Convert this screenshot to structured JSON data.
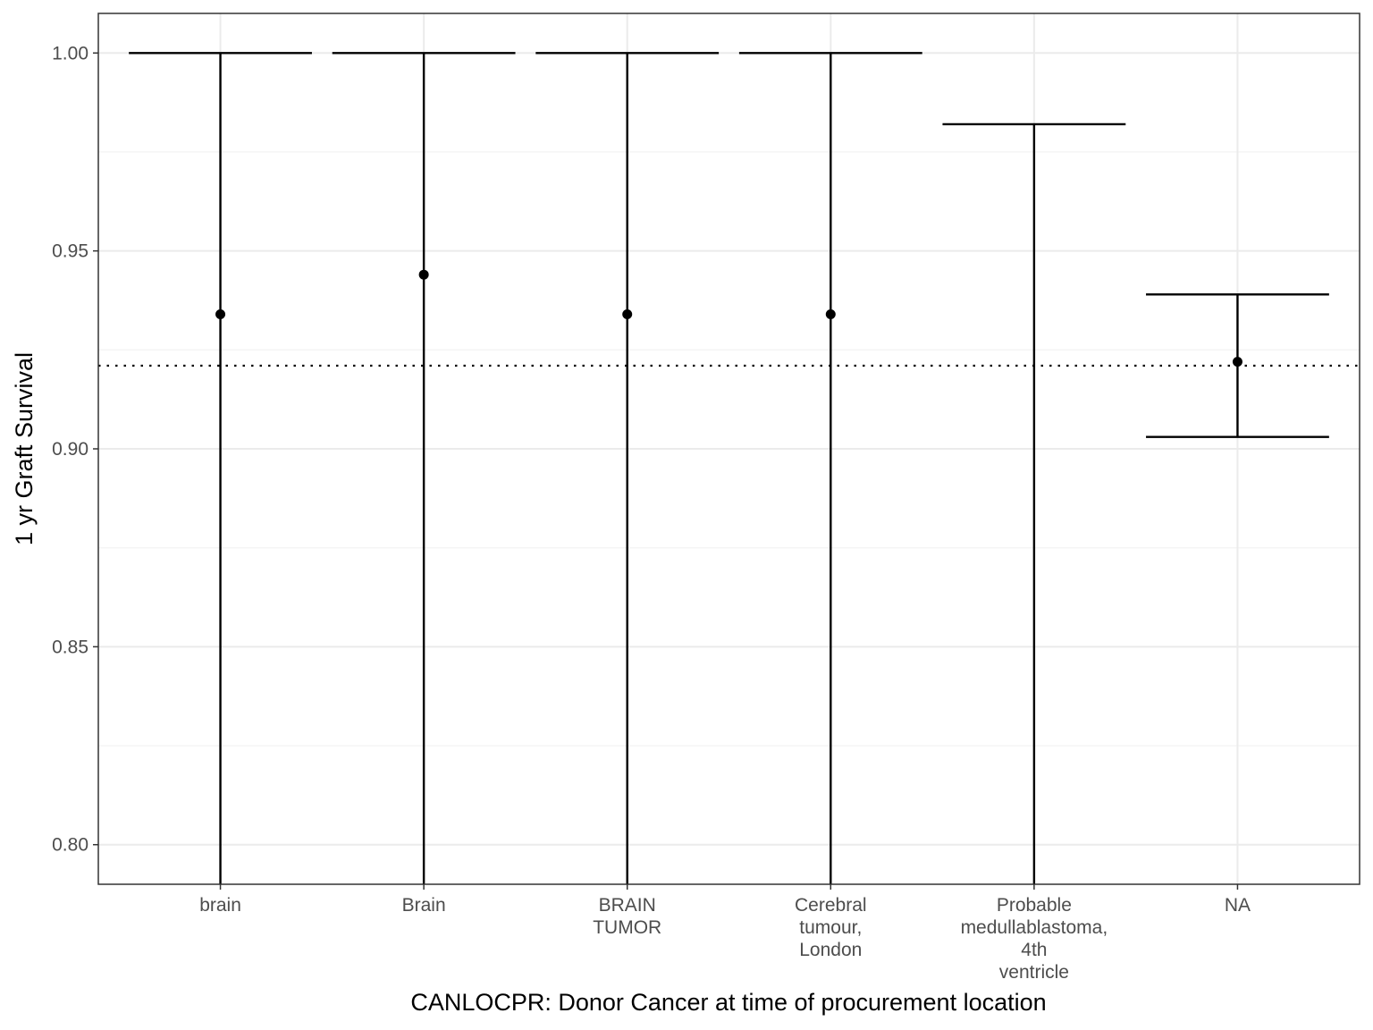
{
  "chart_data": {
    "type": "errorbar",
    "title": "",
    "xlabel": "CANLOCPR: Donor Cancer at time of procurement location",
    "ylabel": "1 yr Graft Survival",
    "ylim": [
      0.79,
      1.01
    ],
    "y_ticks": [
      0.8,
      0.85,
      0.9,
      0.95,
      1.0
    ],
    "y_tick_labels": [
      "0.80",
      "0.85",
      "0.90",
      "0.95",
      "1.00"
    ],
    "grid": true,
    "reference_line": {
      "y": 0.921,
      "style": "dotted"
    },
    "categories": [
      [
        "brain"
      ],
      [
        "Brain"
      ],
      [
        "BRAIN",
        "TUMOR"
      ],
      [
        "Cerebral",
        "tumour,",
        "London"
      ],
      [
        "Probable",
        "medullablastoma,",
        "4th",
        "ventricle"
      ],
      [
        "NA"
      ]
    ],
    "points": [
      {
        "estimate": 0.934,
        "lower": 0.0,
        "upper": 1.0
      },
      {
        "estimate": 0.944,
        "lower": 0.0,
        "upper": 1.0
      },
      {
        "estimate": 0.934,
        "lower": 0.0,
        "upper": 1.0
      },
      {
        "estimate": 0.934,
        "lower": 0.0,
        "upper": 1.0
      },
      {
        "estimate": null,
        "lower": 0.0,
        "upper": 0.982
      },
      {
        "estimate": 0.922,
        "lower": 0.903,
        "upper": 0.939
      }
    ],
    "colors": {
      "panel_border": "#333333",
      "grid_major": "#ebebeb",
      "grid_minor": "#f4f4f4",
      "marks": "#000000",
      "tick_text": "#4d4d4d"
    }
  }
}
